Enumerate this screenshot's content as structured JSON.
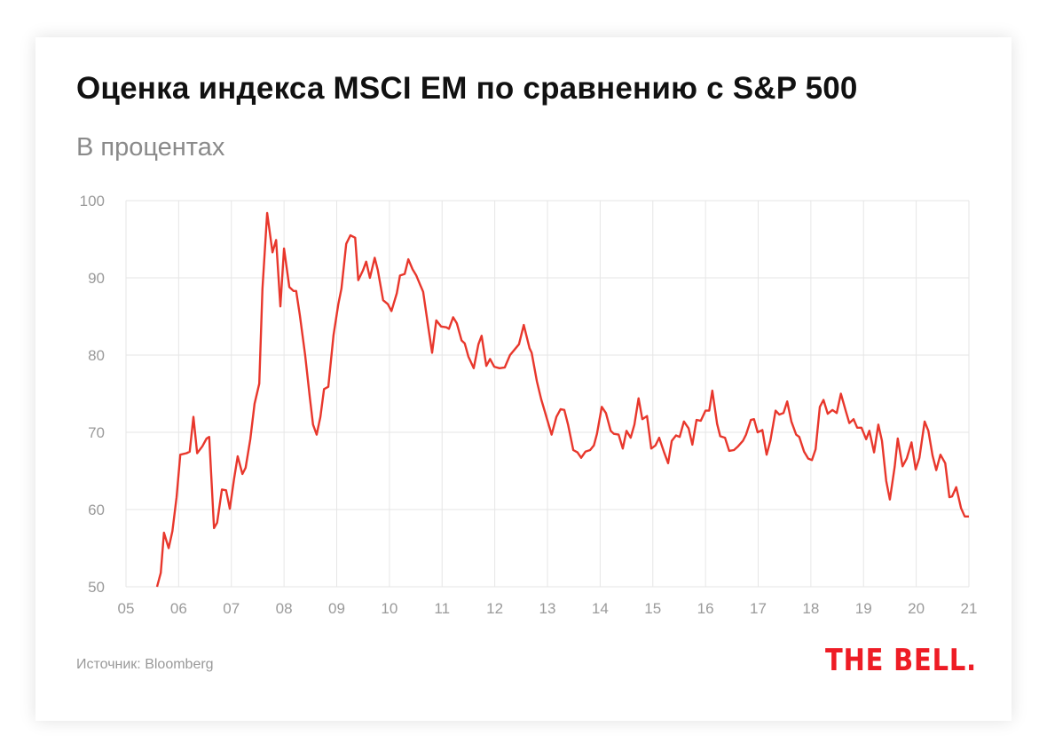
{
  "chart_data": {
    "type": "line",
    "title": "Оценка индекса MSCI EM по сравнению с S&P 500",
    "subtitle": "В процентах",
    "source": "Источник: Bloomberg",
    "logo": "THE BELL.",
    "xlabel": "",
    "ylabel": "",
    "xlim": [
      2005,
      2021
    ],
    "ylim": [
      50,
      100
    ],
    "grid": true,
    "line_color": "#e8372c",
    "yticks": [
      "50",
      "60",
      "70",
      "80",
      "90",
      "100"
    ],
    "ytick_values": [
      50,
      60,
      70,
      80,
      90,
      100
    ],
    "xticks": [
      "05",
      "06",
      "07",
      "08",
      "09",
      "10",
      "11",
      "12",
      "13",
      "14",
      "15",
      "16",
      "17",
      "18",
      "19",
      "20",
      "21"
    ],
    "series": [
      {
        "name": "MSCI EM / S&P 500",
        "x": [
          2005.59,
          2005.66,
          2005.72,
          2005.81,
          2005.88,
          2005.96,
          2006.03,
          2006.15,
          2006.21,
          2006.28,
          2006.35,
          2006.45,
          2006.53,
          2006.58,
          2006.67,
          2006.73,
          2006.82,
          2006.9,
          2006.97,
          2007.05,
          2007.12,
          2007.21,
          2007.27,
          2007.36,
          2007.44,
          2007.53,
          2007.59,
          2007.68,
          2007.78,
          2007.85,
          2007.93,
          2008.0,
          2008.1,
          2008.18,
          2008.23,
          2008.3,
          2008.4,
          2008.49,
          2008.55,
          2008.62,
          2008.69,
          2008.76,
          2008.84,
          2008.94,
          2009.03,
          2009.09,
          2009.18,
          2009.26,
          2009.35,
          2009.41,
          2009.5,
          2009.56,
          2009.63,
          2009.72,
          2009.78,
          2009.88,
          2009.97,
          2010.04,
          2010.14,
          2010.2,
          2010.29,
          2010.36,
          2010.44,
          2010.51,
          2010.59,
          2010.64,
          2010.73,
          2010.81,
          2010.89,
          2010.98,
          2011.08,
          2011.13,
          2011.21,
          2011.28,
          2011.37,
          2011.43,
          2011.5,
          2011.6,
          2011.69,
          2011.75,
          2011.84,
          2011.91,
          2011.99,
          2012.09,
          2012.19,
          2012.29,
          2012.46,
          2012.55,
          2012.66,
          2012.7,
          2012.8,
          2012.88,
          2013.08,
          2013.17,
          2013.25,
          2013.32,
          2013.39,
          2013.49,
          2013.57,
          2013.64,
          2013.72,
          2013.81,
          2013.88,
          2013.94,
          2014.03,
          2014.11,
          2014.2,
          2014.26,
          2014.35,
          2014.43,
          2014.5,
          2014.58,
          2014.65,
          2014.73,
          2014.8,
          2014.89,
          2014.97,
          2015.05,
          2015.12,
          2015.21,
          2015.29,
          2015.36,
          2015.44,
          2015.51,
          2015.59,
          2015.68,
          2015.75,
          2015.83,
          2015.91,
          2016.0,
          2016.07,
          2016.13,
          2016.22,
          2016.28,
          2016.37,
          2016.45,
          2016.54,
          2016.62,
          2016.71,
          2016.77,
          2016.86,
          2016.92,
          2016.99,
          2017.08,
          2017.16,
          2017.23,
          2017.33,
          2017.4,
          2017.48,
          2017.55,
          2017.63,
          2017.72,
          2017.78,
          2017.87,
          2017.95,
          2018.02,
          2018.09,
          2018.17,
          2018.24,
          2018.32,
          2018.41,
          2018.49,
          2018.57,
          2018.66,
          2018.73,
          2018.81,
          2018.88,
          2018.96,
          2019.05,
          2019.11,
          2019.2,
          2019.28,
          2019.35,
          2019.43,
          2019.5,
          2019.59,
          2019.65,
          2019.74,
          2019.82,
          2019.91,
          2019.99,
          2020.06,
          2020.16,
          2020.23,
          2020.31,
          2020.38,
          2020.46,
          2020.55,
          2020.63,
          2020.68,
          2020.76,
          2020.85,
          2020.92,
          2021.0
        ],
        "values": [
          50,
          51.8,
          57,
          55,
          57.2,
          61.6,
          67.1,
          67.3,
          67.5,
          72,
          67.3,
          68.2,
          69.2,
          69.4,
          57.6,
          58.3,
          62.6,
          62.5,
          60.1,
          63.9,
          66.9,
          64.6,
          65.4,
          69.1,
          73.7,
          76.3,
          88.6,
          98.4,
          93.3,
          94.9,
          86.3,
          93.8,
          88.8,
          88.3,
          88.3,
          85.2,
          80,
          74.5,
          71,
          69.7,
          72,
          75.6,
          75.9,
          82.6,
          86.6,
          88.6,
          94.4,
          95.5,
          95.2,
          89.7,
          91.0,
          92.1,
          90,
          92.6,
          91.0,
          87.1,
          86.6,
          85.7,
          88,
          90.3,
          90.5,
          92.4,
          91.1,
          90.3,
          89.0,
          88.2,
          84,
          80.3,
          84.5,
          83.7,
          83.6,
          83.4,
          84.9,
          84.1,
          81.9,
          81.5,
          79.8,
          78.3,
          81.4,
          82.5,
          78.6,
          79.5,
          78.5,
          78.3,
          78.4,
          80,
          81.4,
          83.9,
          80.9,
          80.3,
          76.6,
          74.3,
          69.7,
          72,
          73,
          72.9,
          71,
          67.7,
          67.4,
          66.7,
          67.5,
          67.7,
          68.3,
          69.8,
          73.3,
          72.5,
          70.2,
          69.8,
          69.7,
          67.9,
          70.2,
          69.3,
          71,
          74.4,
          71.7,
          72.1,
          67.9,
          68.3,
          69.3,
          67.5,
          66,
          68.9,
          69.6,
          69.4,
          71.4,
          70.5,
          68.4,
          71.6,
          71.5,
          72.8,
          72.8,
          75.4,
          71.1,
          69.5,
          69.3,
          67.6,
          67.7,
          68.2,
          68.9,
          69.7,
          71.6,
          71.7,
          70,
          70.3,
          67.1,
          68.9,
          72.8,
          72.3,
          72.5,
          74,
          71.4,
          69.7,
          69.4,
          67.5,
          66.6,
          66.4,
          67.8,
          73.3,
          74.2,
          72.4,
          72.9,
          72.5,
          75,
          72.8,
          71.2,
          71.7,
          70.6,
          70.6,
          69.1,
          70.2,
          67.4,
          71.0,
          68.9,
          63.7,
          61.3,
          65.5,
          69.2,
          65.6,
          66.6,
          68.7,
          65.2,
          66.7,
          71.4,
          70.2,
          67,
          65.1,
          67.1,
          66,
          61.6,
          61.7,
          62.9,
          60.2,
          59.1,
          59.1
        ]
      }
    ]
  }
}
